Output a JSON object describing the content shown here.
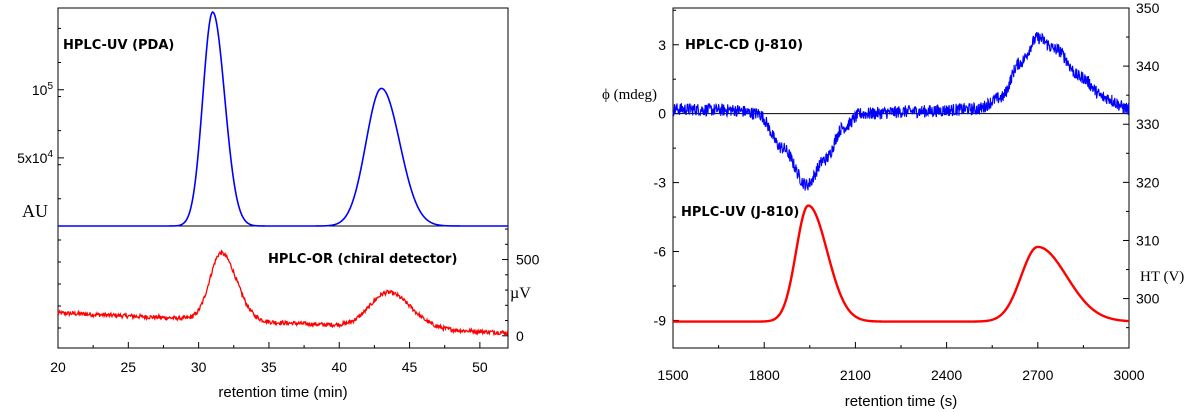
{
  "chart_data": [
    {
      "type": "line",
      "panel": "left-top",
      "annotation": "HPLC-UV (PDA)",
      "ylabel": "AU",
      "y_tick_labels": [
        {
          "value": 50000,
          "base": "5x10",
          "exp": "4"
        },
        {
          "value": 100000,
          "base": "10",
          "exp": "5"
        }
      ],
      "ylim": [
        0,
        160000
      ],
      "xlim": [
        20,
        52
      ],
      "series": [
        {
          "color": "#0000ff",
          "baseline": 0,
          "peaks": [
            {
              "x": 31.0,
              "height": 157000,
              "sigma_left": 0.7,
              "sigma_right": 0.85
            },
            {
              "x": 43.0,
              "height": 101000,
              "sigma_left": 1.1,
              "sigma_right": 1.3
            }
          ]
        }
      ]
    },
    {
      "type": "line",
      "panel": "left-bottom",
      "annotation": "HPLC-OR (chiral detector)",
      "ylabel": "µV",
      "y_ticks": [
        0,
        500
      ],
      "ylim": [
        -80,
        720
      ],
      "xlim": [
        20,
        52
      ],
      "xlabel": "retention time (min)",
      "x_ticks": [
        20,
        25,
        30,
        35,
        40,
        45,
        50
      ],
      "series": [
        {
          "color": "#ff0000",
          "baseline_start": 150,
          "baseline_end": 20,
          "peaks": [
            {
              "x": 31.6,
              "height": 440,
              "sigma_left": 0.8,
              "sigma_right": 1.1
            },
            {
              "x": 43.5,
              "height": 230,
              "sigma_left": 1.3,
              "sigma_right": 1.6
            }
          ]
        }
      ]
    },
    {
      "type": "line",
      "panel": "right",
      "annotations": [
        "HPLC-CD (J-810)",
        "HPLC-UV (J-810)"
      ],
      "xlabel": "retention time (s)",
      "x_ticks": [
        1500,
        1800,
        2100,
        2400,
        2700,
        3000
      ],
      "xlim": [
        1500,
        3000
      ],
      "ylabel_left": "ϕ (mdeg)",
      "y_left_ticks": [
        3,
        0,
        -3,
        -6,
        -9
      ],
      "ylim_left": [
        -10.2,
        4.6
      ],
      "ylabel_right": "HT (V)",
      "y_right_ticks": [
        300,
        310,
        320,
        330,
        340,
        350
      ],
      "ylim_right": [
        291.5,
        350
      ],
      "series": [
        {
          "name": "HPLC-CD (J-810)",
          "color": "#0000ff",
          "axis": "left",
          "points": [
            [
              1500,
              0.2
            ],
            [
              1700,
              0.15
            ],
            [
              1780,
              0.0
            ],
            [
              1860,
              -1.5
            ],
            [
              1940,
              -3.1
            ],
            [
              2000,
              -2.0
            ],
            [
              2060,
              -0.6
            ],
            [
              2120,
              0.0
            ],
            [
              2300,
              0.1
            ],
            [
              2500,
              0.2
            ],
            [
              2580,
              0.7
            ],
            [
              2640,
              2.2
            ],
            [
              2700,
              3.3
            ],
            [
              2760,
              2.8
            ],
            [
              2840,
              1.6
            ],
            [
              2920,
              0.7
            ],
            [
              3000,
              0.2
            ]
          ]
        },
        {
          "name": "HPLC-UV (J-810)",
          "color": "#ff0000",
          "axis": "left",
          "baseline": -9.05,
          "peaks": [
            {
              "x": 1945,
              "height": 5.05,
              "sigma_left": 40,
              "sigma_right": 62
            },
            {
              "x": 2700,
              "height": 3.25,
              "sigma_left": 55,
              "sigma_right": 95
            }
          ]
        }
      ]
    }
  ]
}
